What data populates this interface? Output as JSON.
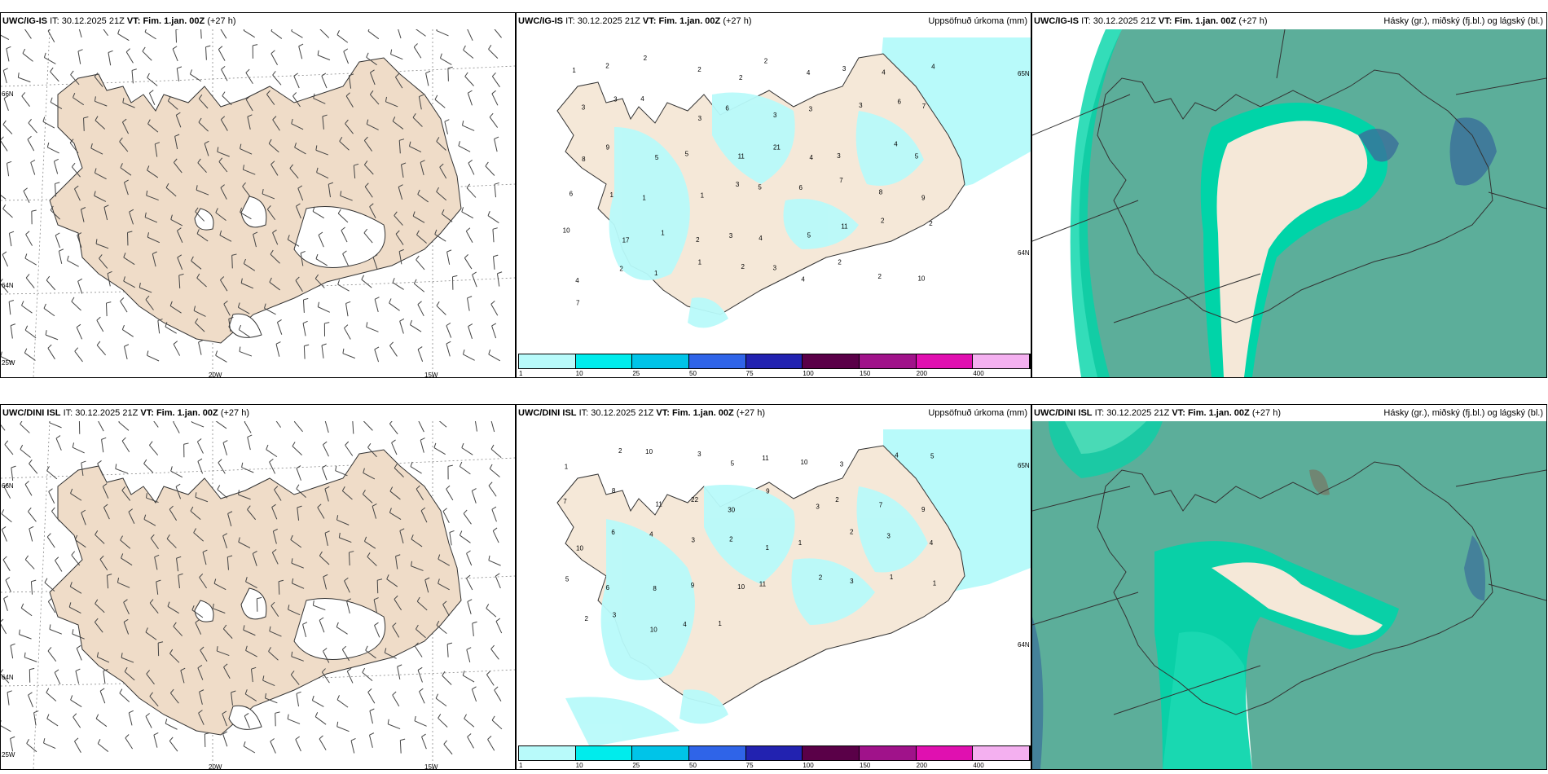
{
  "rows": [
    {
      "model_label": "UWC/IG-IS",
      "header": {
        "it_label": "IT:",
        "it_value": "30.12.2025 21Z",
        "vt_label": "VT:",
        "vt_value": "Fim. 1.jan. 00Z",
        "lead": "(+27 h)"
      },
      "wind": {
        "lon_labels": [
          "20W",
          "15W"
        ],
        "lat_labels": [
          "66N",
          "64N",
          "25W"
        ]
      },
      "precip": {
        "title": "Uppsöfnuð úrkoma (mm)",
        "numbers": [
          "1",
          "2",
          "2",
          "2",
          "2",
          "2",
          "4",
          "3",
          "4",
          "4",
          "3",
          "3",
          "4",
          "3",
          "6",
          "3",
          "3",
          "3",
          "6",
          "7",
          "8",
          "9",
          "5",
          "5",
          "11",
          "21",
          "4",
          "3",
          "4",
          "5",
          "6",
          "1",
          "1",
          "1",
          "3",
          "5",
          "6",
          "7",
          "8",
          "9",
          "10",
          "17",
          "1",
          "2",
          "3",
          "4",
          "5",
          "11",
          "2",
          "2",
          "4",
          "2",
          "1",
          "1",
          "2",
          "3",
          "4",
          "2",
          "2",
          "10",
          "7"
        ],
        "lat_labels": [
          "65N",
          "64N"
        ]
      },
      "clouds": {
        "title": "Hásky (gr.), miðský (fj.bl.) og lágský (bl.)"
      }
    },
    {
      "model_label": "UWC/DINI ISL",
      "header": {
        "it_label": "IT:",
        "it_value": "30.12.2025 21Z",
        "vt_label": "VT:",
        "vt_value": "Fim. 1.jan. 00Z",
        "lead": "(+27 h)"
      },
      "wind": {
        "lon_labels": [
          "20W",
          "15W"
        ],
        "lat_labels": [
          "66N",
          "64N",
          "25W"
        ]
      },
      "precip": {
        "title": "Uppsöfnuð úrkoma (mm)",
        "numbers": [
          "1",
          "2",
          "10",
          "3",
          "5",
          "11",
          "10",
          "3",
          "4",
          "5",
          "7",
          "8",
          "11",
          "22",
          "30",
          "9",
          "3",
          "2",
          "7",
          "9",
          "10",
          "6",
          "4",
          "3",
          "2",
          "1",
          "1",
          "2",
          "3",
          "4",
          "5",
          "6",
          "8",
          "9",
          "10",
          "11",
          "2",
          "3",
          "1",
          "1",
          "2",
          "3",
          "10",
          "4",
          "1"
        ],
        "lat_labels": [
          "65N",
          "64N"
        ]
      },
      "clouds": {
        "title": "Hásky (gr.), miðský (fj.bl.) og lágský (bl.)"
      }
    }
  ],
  "colorbar": {
    "labels": [
      "1",
      "10",
      "25",
      "50",
      "75",
      "100",
      "150",
      "200",
      "400"
    ],
    "colors": [
      "#b8fafa",
      "#00ecec",
      "#00c4e8",
      "#2f64e8",
      "#2222b0",
      "#5a0048",
      "#a0128a",
      "#e010b0",
      "#f4b0f0"
    ]
  },
  "colors": {
    "land": "#f5e8d8",
    "wind_land": "#efdcc8",
    "sea": "#ffffff",
    "precip_light": "#b8fafa",
    "precip_mid": "#7af0f4",
    "cloud_low": "#5cae9a",
    "cloud_mid": "#00d4a8",
    "cloud_high": "#3a6e9a"
  }
}
